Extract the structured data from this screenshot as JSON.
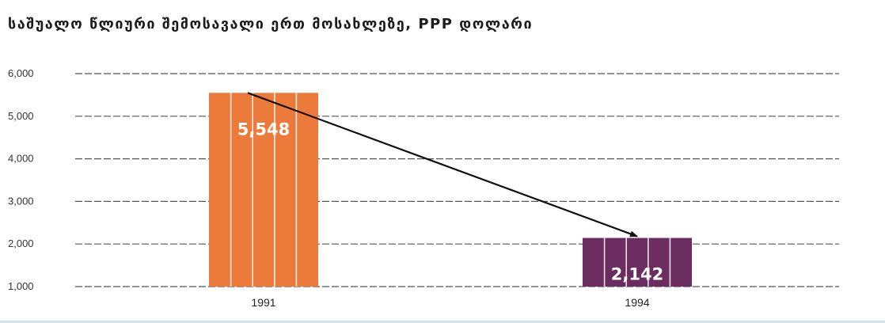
{
  "chart_data": {
    "type": "bar",
    "title": "საშუალო წლიური შემოსავალი ერთ მოსახლეზე, PPP დოლარი",
    "categories": [
      "1991",
      "1994"
    ],
    "values": [
      5548,
      2142
    ],
    "data_labels": [
      "5,548",
      "2,142"
    ],
    "bar_colors": [
      "#ec7a3a",
      "#6b2c5f"
    ],
    "ylim": [
      1000,
      6000
    ],
    "yticks": [
      1000,
      2000,
      3000,
      4000,
      5000,
      6000
    ],
    "ytick_labels": [
      "1,000",
      "2,000",
      "3,000",
      "4,000",
      "5,000",
      "6,000"
    ],
    "grid": true,
    "annotation": "arrow from the top of the 1991 bar down to the top of the 1994 bar"
  }
}
